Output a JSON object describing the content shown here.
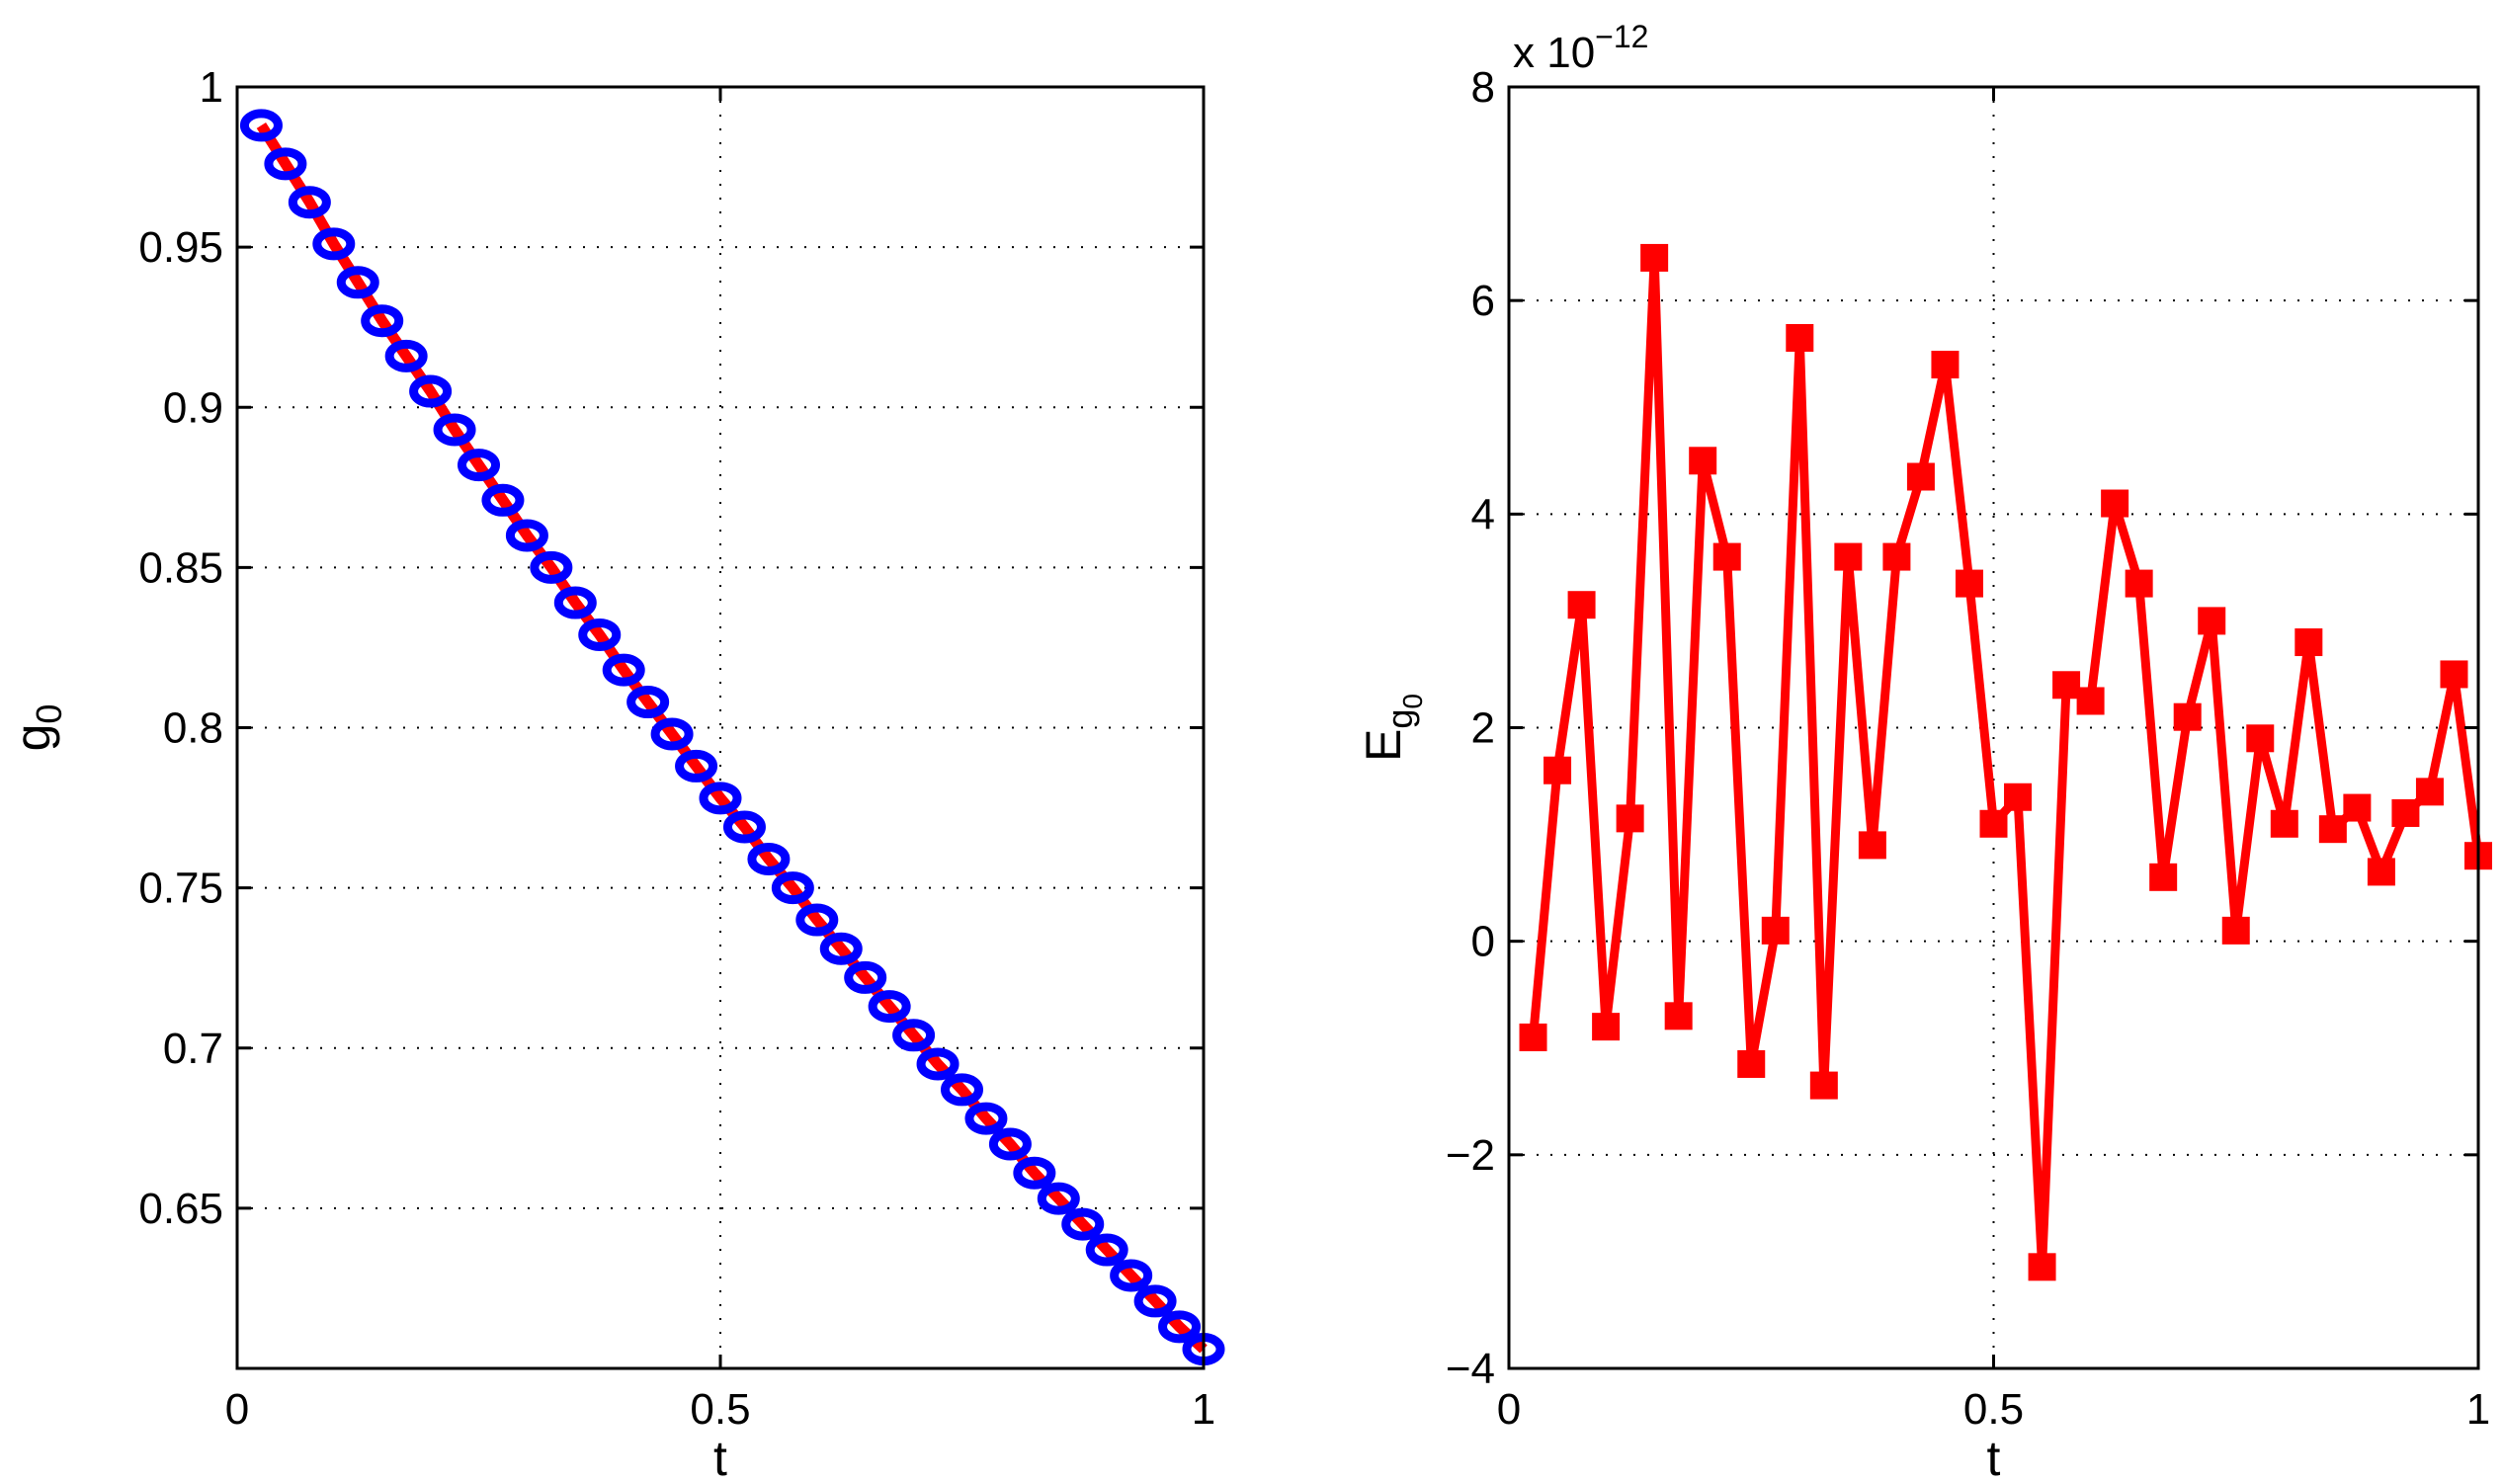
{
  "chart_data": [
    {
      "type": "line",
      "xlabel": "t",
      "ylabel": "g",
      "ylabel_subscript": "0",
      "xlim": [
        0,
        1
      ],
      "ylim": [
        0.6,
        1.0
      ],
      "xticks": [
        0,
        0.5,
        1
      ],
      "xtick_labels": [
        "0",
        "0.5",
        "1"
      ],
      "yticks": [
        0.65,
        0.7,
        0.75,
        0.8,
        0.85,
        0.9,
        0.95,
        1.0
      ],
      "ytick_labels": [
        "0.65",
        "0.7",
        "0.75",
        "0.8",
        "0.85",
        "0.9",
        "0.95",
        "1"
      ],
      "grid": true,
      "series": [
        {
          "marker": "circle",
          "line_color": "#ff0000",
          "marker_color": "#0000ff",
          "x": [
            0.025,
            0.05,
            0.075,
            0.1,
            0.125,
            0.15,
            0.175,
            0.2,
            0.225,
            0.25,
            0.275,
            0.3,
            0.325,
            0.35,
            0.375,
            0.4,
            0.425,
            0.45,
            0.475,
            0.5,
            0.525,
            0.55,
            0.575,
            0.6,
            0.625,
            0.65,
            0.675,
            0.7,
            0.725,
            0.75,
            0.775,
            0.8,
            0.825,
            0.85,
            0.875,
            0.9,
            0.925,
            0.95,
            0.975,
            1.0
          ],
          "y": [
            0.988,
            0.976,
            0.964,
            0.951,
            0.939,
            0.927,
            0.916,
            0.905,
            0.893,
            0.882,
            0.871,
            0.86,
            0.85,
            0.839,
            0.829,
            0.818,
            0.808,
            0.798,
            0.788,
            0.778,
            0.769,
            0.759,
            0.75,
            0.74,
            0.731,
            0.722,
            0.713,
            0.704,
            0.695,
            0.687,
            0.678,
            0.67,
            0.661,
            0.653,
            0.645,
            0.637,
            0.629,
            0.621,
            0.613,
            0.606
          ]
        }
      ]
    },
    {
      "type": "line",
      "xlabel": "t",
      "ylabel": "E",
      "ylabel_subscript": "g",
      "ylabel_subsubscript": "0",
      "exponent_prefix": "x 10",
      "exponent_power": "−12",
      "xlim": [
        0,
        1
      ],
      "ylim": [
        -4,
        8
      ],
      "xticks": [
        0,
        0.5,
        1
      ],
      "xtick_labels": [
        "0",
        "0.5",
        "1"
      ],
      "yticks": [
        -4,
        -2,
        0,
        2,
        4,
        6,
        8
      ],
      "ytick_labels": [
        "−4",
        "−2",
        "0",
        "2",
        "4",
        "6",
        "8"
      ],
      "grid": true,
      "series": [
        {
          "marker": "square",
          "line_color": "#ff0000",
          "marker_color": "#ff0000",
          "x": [
            0.025,
            0.05,
            0.075,
            0.1,
            0.125,
            0.15,
            0.175,
            0.2,
            0.225,
            0.25,
            0.275,
            0.3,
            0.325,
            0.35,
            0.375,
            0.4,
            0.425,
            0.45,
            0.475,
            0.5,
            0.525,
            0.55,
            0.575,
            0.6,
            0.625,
            0.65,
            0.675,
            0.7,
            0.725,
            0.75,
            0.775,
            0.8,
            0.825,
            0.85,
            0.875,
            0.9,
            0.925,
            0.95,
            0.975,
            1.0
          ],
          "y": [
            -0.9,
            1.6,
            3.15,
            -0.8,
            1.15,
            6.4,
            -0.7,
            4.5,
            3.6,
            -1.15,
            0.1,
            5.65,
            -1.35,
            3.6,
            0.9,
            3.6,
            4.35,
            5.4,
            3.35,
            1.1,
            1.35,
            -3.05,
            2.4,
            2.25,
            4.1,
            3.35,
            0.6,
            2.1,
            3.0,
            0.1,
            1.9,
            1.1,
            2.8,
            1.05,
            1.25,
            0.65,
            1.2,
            1.4,
            2.5,
            0.8
          ]
        }
      ]
    }
  ]
}
